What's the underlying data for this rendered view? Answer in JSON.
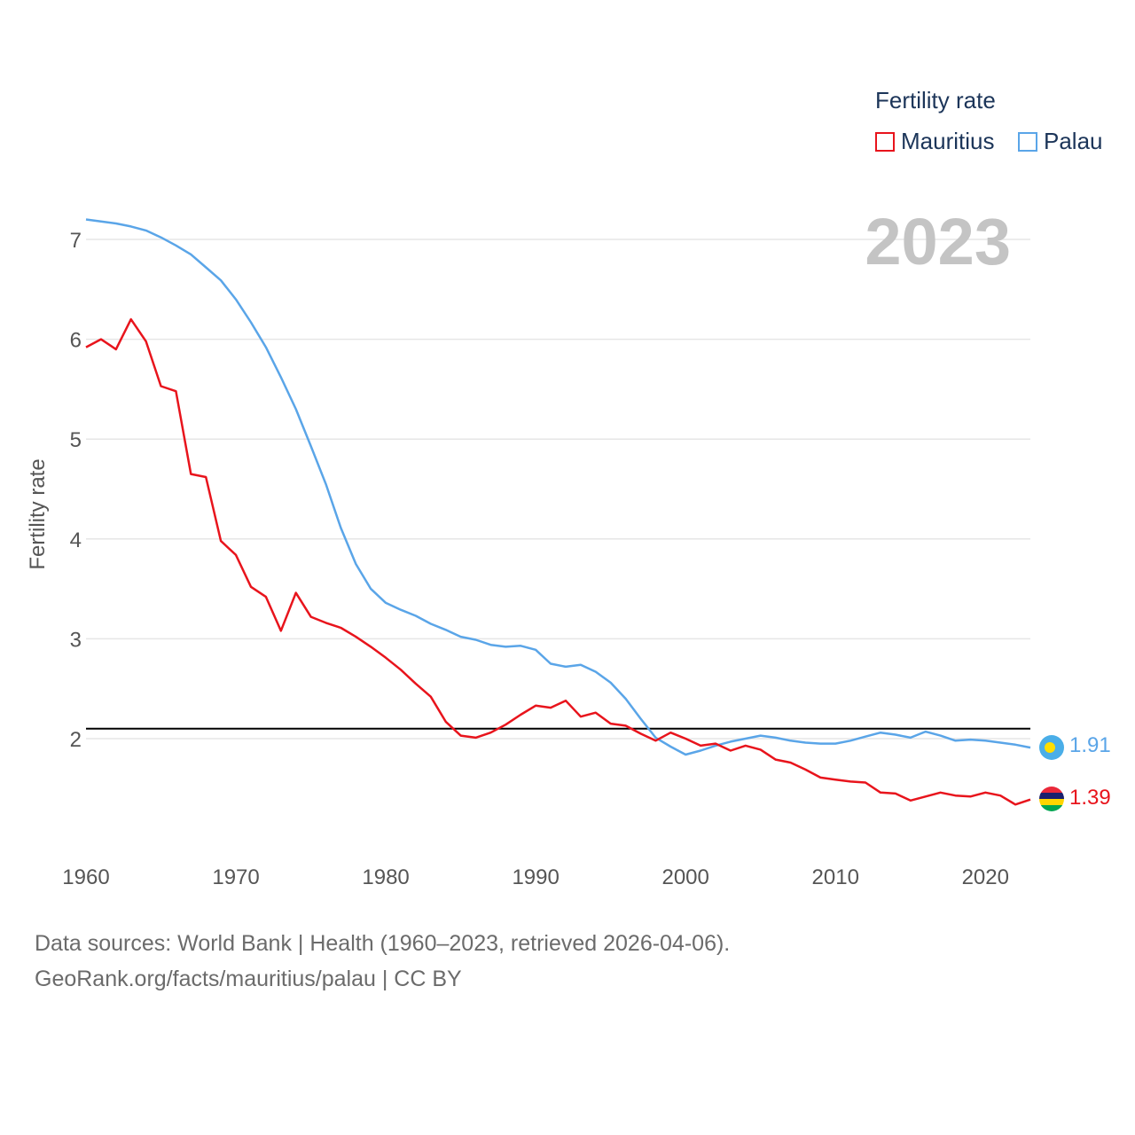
{
  "legend": {
    "title": "Fertility rate",
    "items": [
      {
        "name": "Mauritius",
        "color": "#e8141c"
      },
      {
        "name": "Palau",
        "color": "#5aa5e8"
      }
    ]
  },
  "footer": {
    "line1": "Data sources: World Bank | Health (1960–2023, retrieved 2026-04-06).",
    "line2": "GeoRank.org/facts/mauritius/palau | CC BY"
  },
  "chart_data": {
    "type": "line",
    "title": "Fertility rate",
    "year_label": "2023",
    "ylabel": "Fertility rate",
    "xlabel": "",
    "xlim": [
      1960,
      2023
    ],
    "ylim": [
      1,
      7.3
    ],
    "xticks": [
      1960,
      1970,
      1980,
      1990,
      2000,
      2010,
      2020
    ],
    "yticks": [
      2,
      3,
      4,
      5,
      6,
      7
    ],
    "reference_line": {
      "y": 2.1,
      "color": "#000000"
    },
    "grid": true,
    "legend_position": "top-right",
    "x": [
      1960,
      1961,
      1962,
      1963,
      1964,
      1965,
      1966,
      1967,
      1968,
      1969,
      1970,
      1971,
      1972,
      1973,
      1974,
      1975,
      1976,
      1977,
      1978,
      1979,
      1980,
      1981,
      1982,
      1983,
      1984,
      1985,
      1986,
      1987,
      1988,
      1989,
      1990,
      1991,
      1992,
      1993,
      1994,
      1995,
      1996,
      1997,
      1998,
      1999,
      2000,
      2001,
      2002,
      2003,
      2004,
      2005,
      2006,
      2007,
      2008,
      2009,
      2010,
      2011,
      2012,
      2013,
      2014,
      2015,
      2016,
      2017,
      2018,
      2019,
      2020,
      2021,
      2022,
      2023
    ],
    "series": [
      {
        "name": "Mauritius",
        "color": "#e8141c",
        "end_label": "1.39",
        "values": [
          5.92,
          6.0,
          5.9,
          6.2,
          5.98,
          5.53,
          5.48,
          4.65,
          4.62,
          3.98,
          3.84,
          3.52,
          3.42,
          3.08,
          3.46,
          3.22,
          3.16,
          3.11,
          3.02,
          2.92,
          2.81,
          2.69,
          2.55,
          2.42,
          2.17,
          2.03,
          2.01,
          2.06,
          2.14,
          2.24,
          2.33,
          2.31,
          2.38,
          2.22,
          2.26,
          2.15,
          2.13,
          2.05,
          1.98,
          2.06,
          2.0,
          1.93,
          1.95,
          1.88,
          1.93,
          1.89,
          1.79,
          1.76,
          1.69,
          1.61,
          1.59,
          1.57,
          1.56,
          1.46,
          1.45,
          1.38,
          1.42,
          1.46,
          1.43,
          1.42,
          1.46,
          1.43,
          1.34,
          1.39
        ]
      },
      {
        "name": "Palau",
        "color": "#5aa5e8",
        "end_label": "1.91",
        "values": [
          7.2,
          7.18,
          7.16,
          7.13,
          7.09,
          7.02,
          6.94,
          6.85,
          6.72,
          6.59,
          6.4,
          6.17,
          5.92,
          5.62,
          5.3,
          4.93,
          4.55,
          4.11,
          3.75,
          3.5,
          3.36,
          3.29,
          3.23,
          3.15,
          3.09,
          3.02,
          2.99,
          2.94,
          2.92,
          2.93,
          2.89,
          2.75,
          2.72,
          2.74,
          2.67,
          2.56,
          2.4,
          2.2,
          2.01,
          1.92,
          1.84,
          1.88,
          1.93,
          1.97,
          2.0,
          2.03,
          2.01,
          1.98,
          1.96,
          1.95,
          1.95,
          1.98,
          2.02,
          2.06,
          2.04,
          2.01,
          2.07,
          2.03,
          1.98,
          1.99,
          1.98,
          1.96,
          1.94,
          1.91
        ]
      }
    ]
  }
}
